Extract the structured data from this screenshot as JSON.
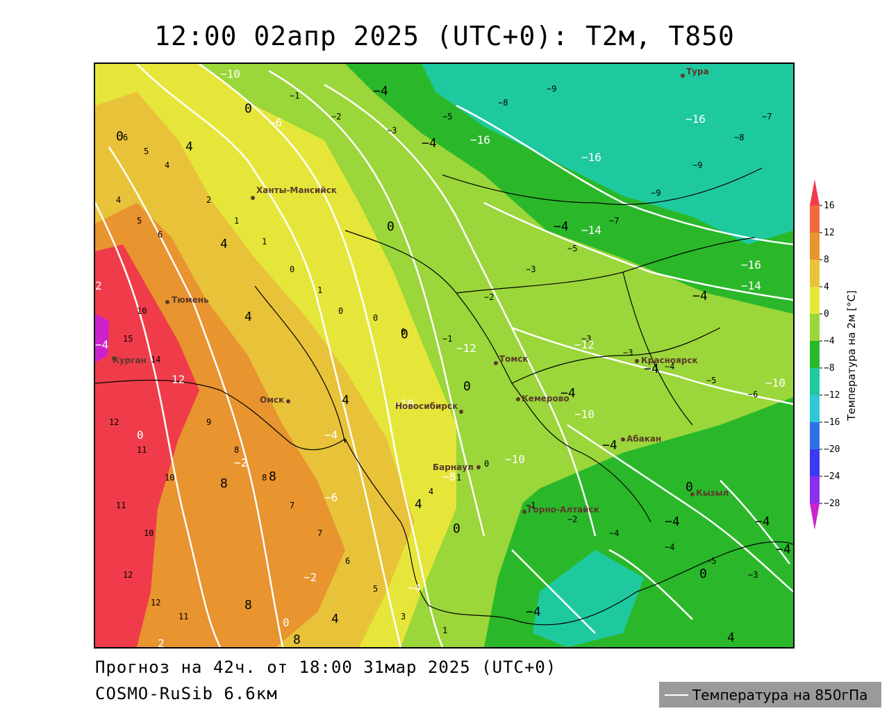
{
  "header": {
    "title": "12:00 02апр 2025 (UTC+0): T2м, T850"
  },
  "footer": {
    "forecast": "Прогноз на 42ч. от 18:00 31мар 2025 (UTC+0)",
    "model": "COSMO-RuSib 6.6км"
  },
  "legend": {
    "contour_label": "Температура на 850гПа",
    "contour_color": "#ffffff"
  },
  "colorbar": {
    "title": "Температура на 2м [°C]",
    "levels": [
      "16",
      "12",
      "8",
      "4",
      "0",
      "−4",
      "−8",
      "−12",
      "−16",
      "−20",
      "−24",
      "−28"
    ],
    "colors": [
      "#f03c4a",
      "#f06a3c",
      "#e8942f",
      "#e8c33a",
      "#e6e63a",
      "#9bd63a",
      "#2ab82a",
      "#1fc9a0",
      "#2fc8d6",
      "#2f72e8",
      "#3a3af0",
      "#8a2ff0",
      "#cc22cc"
    ]
  },
  "cities": [
    {
      "name": "Тура"
    },
    {
      "name": "Ханты-Мансийск"
    },
    {
      "name": "Тюмень"
    },
    {
      "name": "Курган"
    },
    {
      "name": "Омск"
    },
    {
      "name": "Томск"
    },
    {
      "name": "Красноярск"
    },
    {
      "name": "Кемерово"
    },
    {
      "name": "Новосибирск"
    },
    {
      "name": "Абакан"
    },
    {
      "name": "Барнаул"
    },
    {
      "name": "Кызыл"
    },
    {
      "name": "Горно-Алтайск"
    }
  ]
}
